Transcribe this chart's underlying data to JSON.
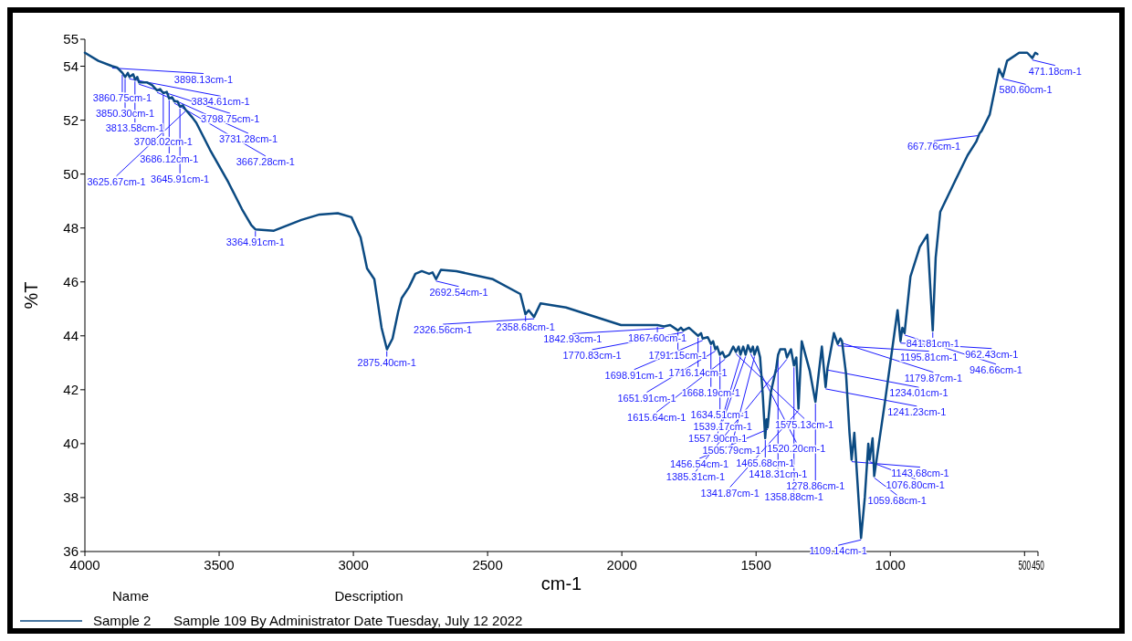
{
  "chart_data": {
    "type": "line",
    "xlabel": "cm-1",
    "ylabel": "%T",
    "legend_title": "Name",
    "legend": "bottom",
    "grid": false,
    "marker": "none",
    "line_style": "solid",
    "xlim": [
      4000,
      450
    ],
    "xticks": [
      4000,
      3500,
      3000,
      2500,
      2000,
      1500,
      1000,
      500,
      450
    ],
    "ylim": [
      36,
      55
    ],
    "yticks": [
      36,
      38,
      40,
      42,
      44,
      46,
      48,
      50,
      52,
      54,
      55
    ],
    "series": [
      {
        "name": "Sample 2",
        "color": "#0b4a82",
        "x": [
          4000,
          3950,
          3898,
          3880,
          3860,
          3850,
          3840,
          3834,
          3820,
          3813,
          3805,
          3798,
          3770,
          3750,
          3731,
          3720,
          3708,
          3695,
          3686,
          3675,
          3667,
          3655,
          3646,
          3635,
          3626,
          3600,
          3585,
          3534,
          3466,
          3415,
          3380,
          3365,
          3296,
          3194,
          3126,
          3058,
          3007,
          2973,
          2949,
          2922,
          2895,
          2875,
          2854,
          2833,
          2820,
          2793,
          2769,
          2745,
          2718,
          2705,
          2692,
          2674,
          2616,
          2480,
          2378,
          2359,
          2347,
          2327,
          2303,
          2208,
          2003,
          1935,
          1868,
          1843,
          1820,
          1791,
          1780,
          1771,
          1750,
          1716,
          1705,
          1699,
          1680,
          1668,
          1660,
          1652,
          1645,
          1635,
          1625,
          1616,
          1600,
          1585,
          1575,
          1565,
          1558,
          1548,
          1539,
          1530,
          1520,
          1512,
          1506,
          1495,
          1485,
          1475,
          1466,
          1461,
          1457,
          1445,
          1425,
          1418,
          1410,
          1392,
          1385,
          1370,
          1359,
          1350,
          1342,
          1330,
          1300,
          1279,
          1255,
          1241,
          1234,
          1210,
          1196,
          1186,
          1180,
          1165,
          1152,
          1144,
          1134,
          1109,
          1095,
          1082,
          1077,
          1066,
          1060,
          1020,
          973,
          962,
          955,
          947,
          925,
          890,
          862,
          842,
          831,
          814,
          756,
          712,
          680,
          668,
          660,
          630,
          595,
          581,
          565,
          520,
          490,
          471,
          460,
          452
        ],
        "values": [
          54.5,
          54.2,
          54.0,
          53.95,
          53.75,
          53.6,
          53.75,
          53.6,
          53.7,
          53.5,
          53.6,
          53.4,
          53.4,
          53.3,
          53.1,
          53.15,
          53.0,
          53.05,
          52.8,
          52.85,
          52.7,
          52.7,
          52.5,
          52.55,
          52.4,
          52.1,
          51.9,
          50.9,
          49.7,
          48.7,
          48.1,
          47.95,
          47.9,
          48.3,
          48.5,
          48.55,
          48.4,
          47.65,
          46.5,
          46.1,
          44.3,
          43.5,
          43.9,
          44.9,
          45.4,
          45.8,
          46.3,
          46.4,
          46.3,
          46.35,
          46.1,
          46.45,
          46.4,
          46.1,
          45.55,
          44.8,
          44.95,
          44.7,
          45.2,
          45.05,
          44.4,
          44.4,
          44.4,
          44.35,
          44.4,
          44.2,
          44.3,
          44.2,
          44.3,
          44.0,
          44.1,
          43.9,
          43.95,
          43.7,
          43.8,
          43.5,
          43.6,
          43.3,
          43.4,
          43.2,
          43.3,
          43.6,
          43.4,
          43.6,
          43.3,
          43.6,
          43.3,
          43.65,
          43.4,
          43.6,
          43.3,
          43.6,
          43.2,
          41.8,
          40.2,
          40.9,
          40.6,
          41.9,
          42.8,
          43.3,
          43.5,
          43.5,
          43.2,
          43.5,
          42.9,
          43.2,
          41.3,
          43.8,
          42.7,
          41.55,
          43.6,
          42.1,
          42.8,
          44.1,
          43.7,
          43.9,
          43.8,
          42.6,
          40.4,
          39.4,
          40.4,
          36.5,
          38.0,
          40.0,
          39.4,
          40.2,
          38.8,
          41.55,
          44.95,
          43.8,
          44.3,
          44.1,
          46.2,
          47.3,
          47.75,
          44.2,
          46.9,
          48.6,
          49.8,
          50.7,
          51.2,
          51.5,
          51.6,
          52.2,
          53.9,
          53.6,
          54.2,
          54.5,
          54.5,
          54.3,
          54.5,
          54.45
        ]
      }
    ],
    "annotations": [
      "Description",
      "Sample 109 By Administrator Date Tuesday, July 12 2022",
      {
        "text": "3898.13cm-1",
        "x": 3898.13,
        "y": 54.0
      },
      {
        "text": "3860.75cm-1",
        "x": 3860.75,
        "y": 53.75
      },
      {
        "text": "3850.30cm-1",
        "x": 3850.3,
        "y": 53.6
      },
      {
        "text": "3834.61cm-1",
        "x": 3834.61,
        "y": 53.6
      },
      {
        "text": "3813.58cm-1",
        "x": 3813.58,
        "y": 53.5
      },
      {
        "text": "3798.75cm-1",
        "x": 3798.75,
        "y": 53.4
      },
      {
        "text": "3731.28cm-1",
        "x": 3731.28,
        "y": 53.1
      },
      {
        "text": "3708.02cm-1",
        "x": 3708.02,
        "y": 53.0
      },
      {
        "text": "3686.12cm-1",
        "x": 3686.12,
        "y": 52.8
      },
      {
        "text": "3667.28cm-1",
        "x": 3667.28,
        "y": 52.7
      },
      {
        "text": "3645.91cm-1",
        "x": 3645.91,
        "y": 52.5
      },
      {
        "text": "3625.67cm-1",
        "x": 3625.67,
        "y": 52.4
      },
      {
        "text": "3364.91cm-1",
        "x": 3364.91,
        "y": 47.95
      },
      {
        "text": "2875.40cm-1",
        "x": 2875.4,
        "y": 43.5
      },
      {
        "text": "2692.54cm-1",
        "x": 2692.54,
        "y": 46.1
      },
      {
        "text": "2358.68cm-1",
        "x": 2358.68,
        "y": 44.8
      },
      {
        "text": "2326.56cm-1",
        "x": 2326.56,
        "y": 44.7
      },
      {
        "text": "1867.60cm-1",
        "x": 1867.6,
        "y": 44.4
      },
      {
        "text": "1842.93cm-1",
        "x": 1842.93,
        "y": 44.35
      },
      {
        "text": "1791.15cm-1",
        "x": 1791.15,
        "y": 44.2
      },
      {
        "text": "1770.83cm-1",
        "x": 1770.83,
        "y": 44.2
      },
      {
        "text": "1716.14cm-1",
        "x": 1716.14,
        "y": 44.0
      },
      {
        "text": "1698.91cm-1",
        "x": 1698.91,
        "y": 43.9
      },
      {
        "text": "1668.19cm-1",
        "x": 1668.19,
        "y": 43.7
      },
      {
        "text": "1651.91cm-1",
        "x": 1651.91,
        "y": 43.5
      },
      {
        "text": "1634.51cm-1",
        "x": 1634.51,
        "y": 43.3
      },
      {
        "text": "1615.64cm-1",
        "x": 1615.64,
        "y": 43.2
      },
      {
        "text": "1575.13cm-1",
        "x": 1575.13,
        "y": 43.4
      },
      {
        "text": "1557.90cm-1",
        "x": 1557.9,
        "y": 43.3
      },
      {
        "text": "1539.17cm-1",
        "x": 1539.17,
        "y": 43.3
      },
      {
        "text": "1520.20cm-1",
        "x": 1520.2,
        "y": 43.4
      },
      {
        "text": "1505.79cm-1",
        "x": 1505.79,
        "y": 43.3
      },
      {
        "text": "1465.68cm-1",
        "x": 1465.68,
        "y": 40.2
      },
      {
        "text": "1456.54cm-1",
        "x": 1456.54,
        "y": 40.6
      },
      {
        "text": "1418.31cm-1",
        "x": 1418.31,
        "y": 43.3
      },
      {
        "text": "1385.31cm-1",
        "x": 1385.31,
        "y": 43.2
      },
      {
        "text": "1358.88cm-1",
        "x": 1358.88,
        "y": 42.9
      },
      {
        "text": "1341.87cm-1",
        "x": 1341.87,
        "y": 41.3
      },
      {
        "text": "1278.86cm-1",
        "x": 1278.86,
        "y": 41.55
      },
      {
        "text": "1241.23cm-1",
        "x": 1241.23,
        "y": 42.1
      },
      {
        "text": "1234.01cm-1",
        "x": 1234.01,
        "y": 42.8
      },
      {
        "text": "1195.81cm-1",
        "x": 1195.81,
        "y": 43.7
      },
      {
        "text": "1179.87cm-1",
        "x": 1179.87,
        "y": 43.8
      },
      {
        "text": "1143.68cm-1",
        "x": 1143.68,
        "y": 39.4
      },
      {
        "text": "1109.14cm-1",
        "x": 1109.14,
        "y": 36.5
      },
      {
        "text": "1076.80cm-1",
        "x": 1076.8,
        "y": 39.4
      },
      {
        "text": "1059.68cm-1",
        "x": 1059.68,
        "y": 38.8
      },
      {
        "text": "962.43cm-1",
        "x": 962.43,
        "y": 43.8
      },
      {
        "text": "946.66cm-1",
        "x": 946.66,
        "y": 44.1
      },
      {
        "text": "841.81cm-1",
        "x": 841.81,
        "y": 44.2
      },
      {
        "text": "667.76cm-1",
        "x": 667.76,
        "y": 51.5
      },
      {
        "text": "580.60cm-1",
        "x": 580.6,
        "y": 53.6
      },
      {
        "text": "471.18cm-1",
        "x": 471.18,
        "y": 54.3
      }
    ]
  }
}
